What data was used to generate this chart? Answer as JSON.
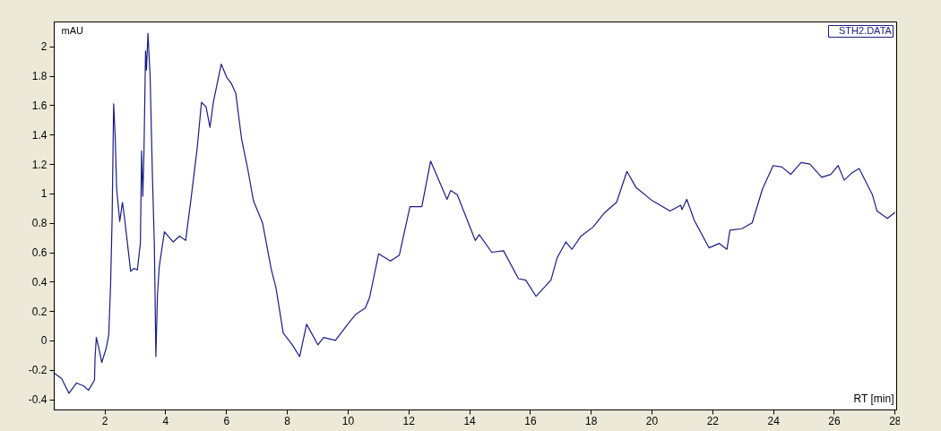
{
  "chart_data": {
    "type": "line",
    "xlabel": "RT [min]",
    "ylabel": "mAU",
    "legend": "top right",
    "grid": false,
    "line_style": "solid",
    "marker": "none",
    "xlim": [
      0.33,
      28.05
    ],
    "ylim": [
      -0.47,
      2.17
    ],
    "xticks": [
      2,
      4,
      6,
      8,
      10,
      12,
      14,
      16,
      18,
      20,
      22,
      24,
      26,
      28
    ],
    "yticks": [
      -0.4,
      -0.2,
      0,
      0.2,
      0.4,
      0.6,
      0.8,
      1,
      1.2,
      1.4,
      1.6,
      1.8,
      2
    ],
    "series": [
      {
        "name": "STH2.DATA",
        "color": "#1c1c84",
        "x": [
          0.33,
          0.59,
          0.83,
          1.08,
          1.32,
          1.47,
          1.67,
          1.69,
          1.73,
          1.81,
          1.91,
          2.06,
          2.14,
          2.2,
          2.25,
          2.3,
          2.35,
          2.4,
          2.5,
          2.59,
          2.66,
          2.86,
          2.97,
          3.08,
          3.18,
          3.22,
          3.26,
          3.3,
          3.35,
          3.38,
          3.43,
          3.5,
          3.58,
          3.64,
          3.69,
          3.74,
          3.8,
          3.97,
          4.26,
          4.47,
          4.67,
          4.85,
          5.05,
          5.19,
          5.34,
          5.47,
          5.58,
          5.71,
          5.84,
          6.02,
          6.17,
          6.32,
          6.51,
          6.71,
          6.9,
          7.2,
          7.49,
          7.64,
          7.88,
          8.18,
          8.42,
          8.65,
          9.02,
          9.21,
          9.6,
          10.04,
          10.28,
          10.58,
          10.72,
          11.02,
          11.41,
          11.7,
          12.05,
          12.44,
          12.73,
          13.27,
          13.39,
          13.61,
          14.2,
          14.33,
          14.74,
          15.13,
          15.62,
          15.86,
          16.2,
          16.69,
          16.89,
          17.18,
          17.38,
          17.68,
          18.07,
          18.46,
          18.85,
          19.19,
          19.49,
          20.03,
          20.61,
          20.96,
          21.0,
          21.16,
          21.4,
          21.89,
          22.23,
          22.48,
          22.58,
          22.97,
          23.31,
          23.65,
          24.0,
          24.29,
          24.58,
          24.92,
          25.21,
          25.6,
          25.9,
          26.14,
          26.34,
          26.59,
          26.83,
          27.27,
          27.42,
          27.76,
          28.0
        ],
        "values": [
          -0.22,
          -0.26,
          -0.36,
          -0.29,
          -0.31,
          -0.34,
          -0.27,
          -0.11,
          0.02,
          -0.05,
          -0.15,
          -0.05,
          0.04,
          0.38,
          0.83,
          1.61,
          1.39,
          1.03,
          0.81,
          0.94,
          0.83,
          0.47,
          0.49,
          0.48,
          0.66,
          1.29,
          0.98,
          1.3,
          1.97,
          1.84,
          2.09,
          1.8,
          1.09,
          0.65,
          -0.11,
          0.3,
          0.5,
          0.74,
          0.67,
          0.71,
          0.68,
          0.97,
          1.31,
          1.62,
          1.59,
          1.45,
          1.62,
          1.75,
          1.88,
          1.79,
          1.75,
          1.68,
          1.37,
          1.17,
          0.95,
          0.8,
          0.48,
          0.36,
          0.05,
          -0.03,
          -0.11,
          0.11,
          -0.03,
          0.02,
          0.0,
          0.12,
          0.18,
          0.22,
          0.29,
          0.59,
          0.54,
          0.58,
          0.91,
          0.91,
          1.22,
          0.96,
          1.02,
          0.99,
          0.68,
          0.72,
          0.6,
          0.61,
          0.42,
          0.41,
          0.3,
          0.41,
          0.56,
          0.67,
          0.62,
          0.71,
          0.77,
          0.87,
          0.94,
          1.15,
          1.04,
          0.95,
          0.88,
          0.92,
          0.89,
          0.96,
          0.82,
          0.63,
          0.66,
          0.62,
          0.75,
          0.76,
          0.8,
          1.03,
          1.19,
          1.18,
          1.13,
          1.21,
          1.2,
          1.11,
          1.13,
          1.19,
          1.09,
          1.14,
          1.17,
          0.99,
          0.88,
          0.83,
          0.87
        ]
      }
    ]
  }
}
